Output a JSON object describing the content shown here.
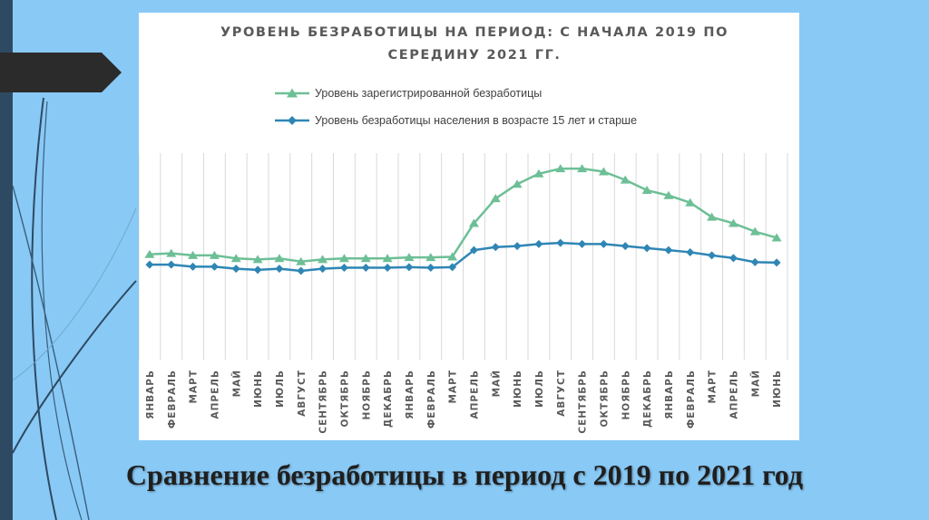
{
  "slide": {
    "caption": "Сравнение безработицы в период с 2019 по 2021 год"
  },
  "colors": {
    "background": "#89c9f5",
    "registered": "#6dbf96",
    "population": "#2f86b5",
    "grid": "#d9d9d9",
    "text": "#595959"
  },
  "chart_data": {
    "type": "line",
    "title": "УРОВЕНЬ БЕЗРАБОТИЦЫ НА ПЕРИОД: С НАЧАЛА 2019 ПО СЕРЕДИНУ 2021 ГГ.",
    "xlabel": "",
    "ylabel": "",
    "grid": "vertical",
    "legend_position": "top",
    "categories": [
      "ЯНВАРЬ",
      "ФЕВРАЛЬ",
      "МАРТ",
      "АПРЕЛЬ",
      "МАЙ",
      "ИЮНЬ",
      "ИЮЛЬ",
      "АВГУСТ",
      "СЕНТЯБРЬ",
      "ОКТЯБРЬ",
      "НОЯБРЬ",
      "ДЕКАБРЬ",
      "ЯНВАРЬ",
      "ФЕВРАЛЬ",
      "МАРТ",
      "АПРЕЛЬ",
      "МАЙ",
      "ИЮНЬ",
      "ИЮЛЬ",
      "АВГУСТ",
      "СЕНТЯБРЬ",
      "ОКТЯБРЬ",
      "НОЯБРЬ",
      "ДЕКАБРЬ",
      "ЯНВАРЬ",
      "ФЕВРАЛЬ",
      "МАРТ",
      "АПРЕЛЬ",
      "МАЙ",
      "ИЮНЬ"
    ],
    "ylim": [
      0,
      10
    ],
    "series": [
      {
        "name": "Уровень зарегистрированной безработицы",
        "marker": "triangle",
        "values": [
          5.1,
          5.15,
          5.05,
          5.05,
          4.9,
          4.85,
          4.9,
          4.75,
          4.85,
          4.9,
          4.9,
          4.9,
          4.95,
          4.95,
          4.98,
          6.6,
          7.8,
          8.5,
          9.0,
          9.25,
          9.25,
          9.1,
          8.7,
          8.2,
          7.95,
          7.6,
          6.9,
          6.6,
          6.2,
          5.9
        ]
      },
      {
        "name": "Уровень безработицы населения в возрасте 15 лет и старше",
        "marker": "diamond",
        "values": [
          4.6,
          4.6,
          4.5,
          4.5,
          4.4,
          4.35,
          4.4,
          4.3,
          4.4,
          4.45,
          4.45,
          4.45,
          4.48,
          4.45,
          4.48,
          5.3,
          5.45,
          5.5,
          5.6,
          5.65,
          5.6,
          5.6,
          5.5,
          5.4,
          5.3,
          5.2,
          5.05,
          4.92,
          4.72,
          4.7
        ]
      }
    ]
  }
}
